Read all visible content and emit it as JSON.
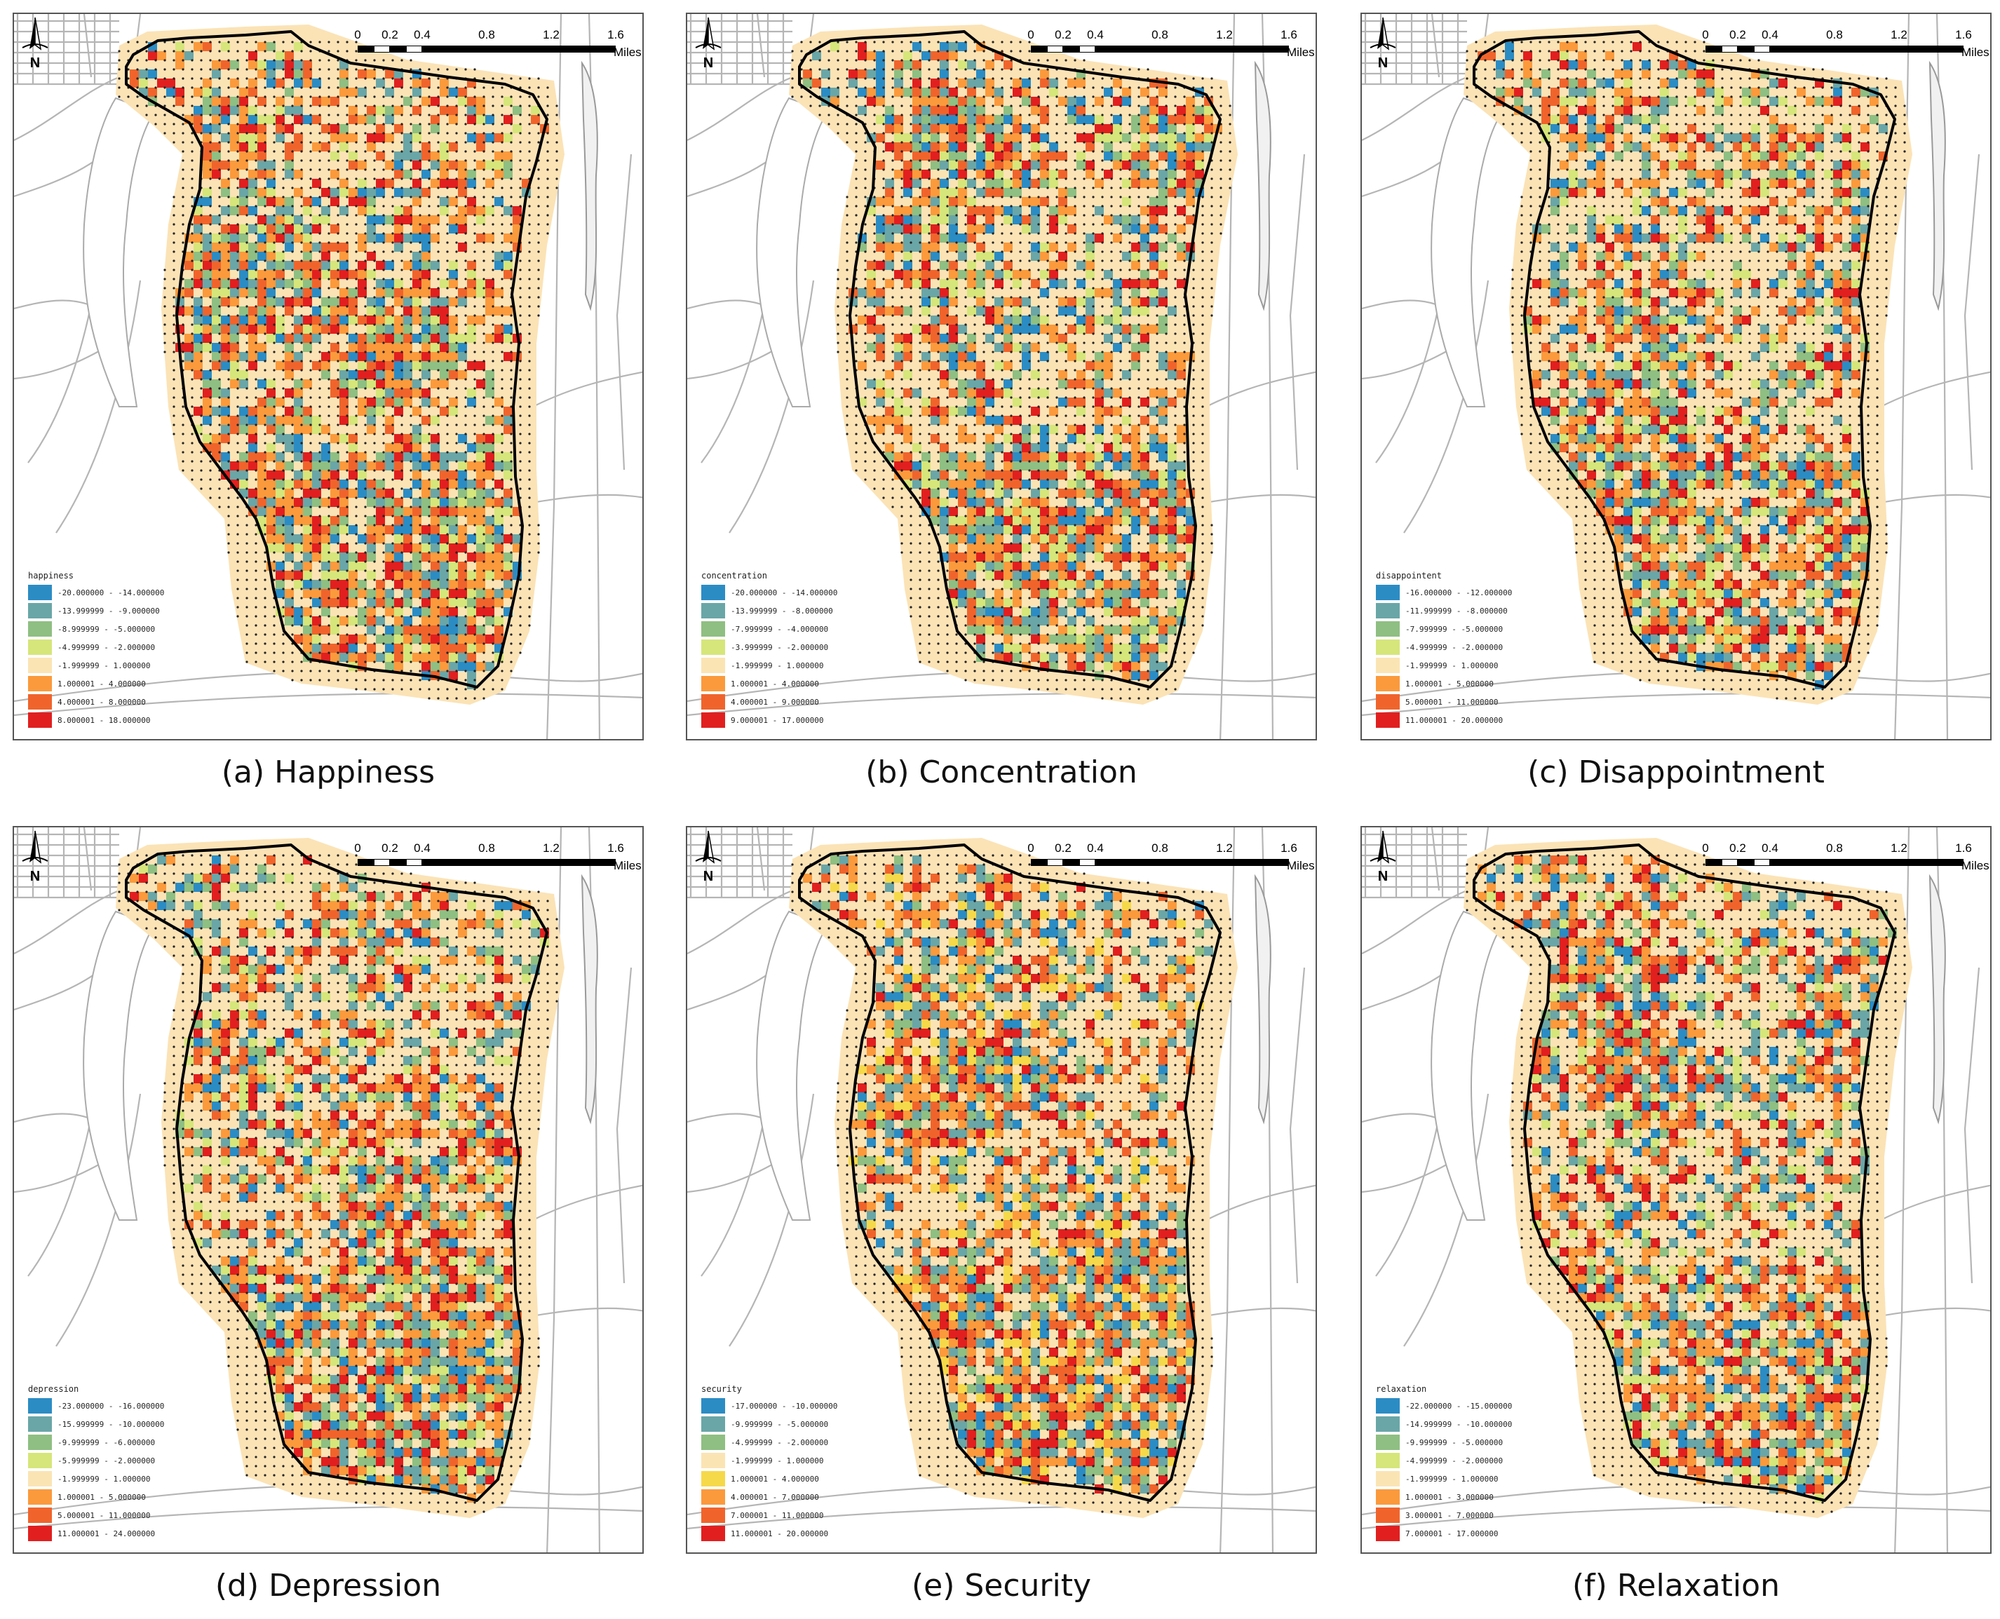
{
  "panels": [
    {
      "id": "a",
      "caption": "(a)  Happiness",
      "legend_title": "happiness",
      "legend": [
        "-20.000000 - -14.000000",
        "-13.999999 - -9.000000",
        "-8.999999 - -5.000000",
        "-4.999999 - -2.000000",
        "-1.999999 - 1.000000",
        "1.000001 - 4.000000",
        "4.000001 - 8.000000",
        "8.000001 - 18.000000"
      ],
      "colors": [
        "#2b8cc4",
        "#6aa6a7",
        "#8fbf82",
        "#d6e67a",
        "#fbe4b4",
        "#fb9a3c",
        "#f0642c",
        "#e11f1f"
      ],
      "seed": 11
    },
    {
      "id": "b",
      "caption": "(b)  Concentration",
      "legend_title": "concentration",
      "legend": [
        "-20.000000 - -14.000000",
        "-13.999999 - -8.000000",
        "-7.999999 - -4.000000",
        "-3.999999 - -2.000000",
        "-1.999999 - 1.000000",
        "1.000001 - 4.000000",
        "4.000001 - 9.000000",
        "9.000001 - 17.000000"
      ],
      "colors": [
        "#2b8cc4",
        "#6aa6a7",
        "#8fbf82",
        "#d6e67a",
        "#fbe4b4",
        "#fb9a3c",
        "#f0642c",
        "#e11f1f"
      ],
      "seed": 23
    },
    {
      "id": "c",
      "caption": "(c)  Disappointment",
      "legend_title": "disappointent",
      "legend": [
        "-16.000000 - -12.000000",
        "-11.999999 - -8.000000",
        "-7.999999 - -5.000000",
        "-4.999999 - -2.000000",
        "-1.999999 - 1.000000",
        "1.000001 - 5.000000",
        "5.000001 - 11.000000",
        "11.000001 - 20.000000"
      ],
      "colors": [
        "#2b8cc4",
        "#6aa6a7",
        "#8fbf82",
        "#d6e67a",
        "#fbe4b4",
        "#fb9a3c",
        "#f0642c",
        "#e11f1f"
      ],
      "seed": 37
    },
    {
      "id": "d",
      "caption": "(d)  Depression",
      "legend_title": "depression",
      "legend": [
        "-23.000000 - -16.000000",
        "-15.999999 - -10.000000",
        "-9.999999 - -6.000000",
        "-5.999999 - -2.000000",
        "-1.999999 - 1.000000",
        "1.000001 - 5.000000",
        "5.000001 - 11.000000",
        "11.000001 - 24.000000"
      ],
      "colors": [
        "#2b8cc4",
        "#6aa6a7",
        "#8fbf82",
        "#d6e67a",
        "#fbe4b4",
        "#fb9a3c",
        "#f0642c",
        "#e11f1f"
      ],
      "seed": 41
    },
    {
      "id": "e",
      "caption": "(e)  Security",
      "legend_title": "security",
      "legend": [
        "-17.000000 - -10.000000",
        "-9.999999 - -5.000000",
        "-4.999999 - -2.000000",
        "-1.999999 - 1.000000",
        "1.000001 - 4.000000",
        "4.000001 - 7.000000",
        "7.000001 - 11.000000",
        "11.000001 - 20.000000"
      ],
      "colors": [
        "#2b8cc4",
        "#6aa6a7",
        "#8fbf82",
        "#fbe4b4",
        "#f6d94a",
        "#fb9a3c",
        "#f0642c",
        "#e11f1f"
      ],
      "seed": 53
    },
    {
      "id": "f",
      "caption": "(f)  Relaxation",
      "legend_title": "relaxation",
      "legend": [
        "-22.000000 - -15.000000",
        "-14.999999 - -10.000000",
        "-9.999999 - -5.000000",
        "-4.999999 - -2.000000",
        "-1.999999 - 1.000000",
        "1.000001 - 3.000000",
        "3.000001 - 7.000000",
        "7.000001 - 17.000000"
      ],
      "colors": [
        "#2b8cc4",
        "#6aa6a7",
        "#8fbf82",
        "#d6e67a",
        "#fbe4b4",
        "#fb9a3c",
        "#f0642c",
        "#e11f1f"
      ],
      "seed": 67
    }
  ],
  "scale": {
    "ticks": [
      "0",
      "0.2",
      "0.4",
      "0.8",
      "1.2",
      "1.6"
    ],
    "unit": "Miles"
  },
  "north_label": "N"
}
